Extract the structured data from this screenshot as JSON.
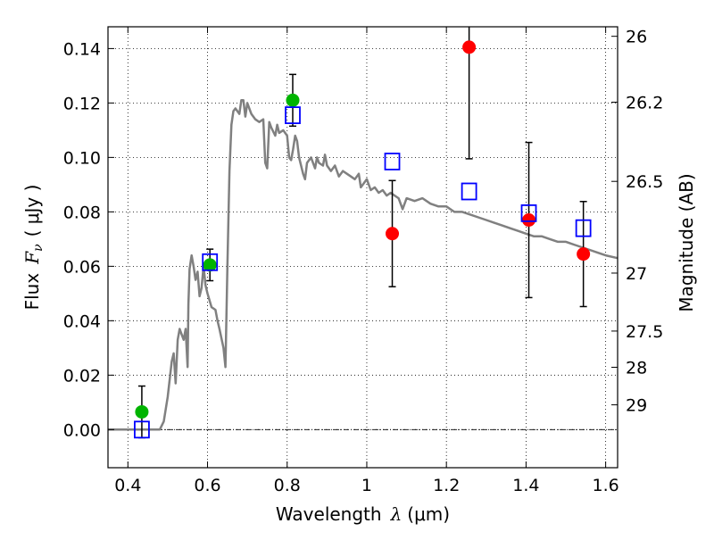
{
  "chart_data": {
    "type": "scatter",
    "xlabel": "Wavelength",
    "xlabel_symbol": "λ",
    "xlabel_unit": "(μm)",
    "ylabel": "Flux",
    "ylabel_symbol": "F",
    "ylabel_subscript": "ν",
    "ylabel_unit": "( μJy )",
    "y2label": "Magnitude (AB)",
    "xlim": [
      0.35,
      1.63
    ],
    "ylim": [
      -0.014,
      0.148
    ],
    "grid": true,
    "grid_style": "dotted",
    "x_ticks": [
      0.4,
      0.6,
      0.8,
      1.0,
      1.2,
      1.4,
      1.6
    ],
    "x_tick_labels": [
      "0.4",
      "0.6",
      "0.8",
      "1",
      "1.2",
      "1.4",
      "1.6"
    ],
    "y_ticks": [
      0.0,
      0.02,
      0.04,
      0.06,
      0.08,
      0.1,
      0.12,
      0.14
    ],
    "y_tick_labels": [
      "0.00",
      "0.02",
      "0.04",
      "0.06",
      "0.08",
      "0.10",
      "0.12",
      "0.14"
    ],
    "y2_ticks": [
      {
        "flux": 0.1445,
        "label": "26"
      },
      {
        "flux": 0.1203,
        "label": "26.2"
      },
      {
        "flux": 0.0912,
        "label": "26.5"
      },
      {
        "flux": 0.0575,
        "label": "27"
      },
      {
        "flux": 0.0362,
        "label": "27.5"
      },
      {
        "flux": 0.0229,
        "label": "28"
      },
      {
        "flux": 0.0091,
        "label": "29"
      }
    ],
    "zero_line": 0.0,
    "model_spectrum": {
      "color": "#808080",
      "points": [
        [
          0.35,
          0.0
        ],
        [
          0.48,
          0.0
        ],
        [
          0.49,
          0.003
        ],
        [
          0.5,
          0.012
        ],
        [
          0.51,
          0.025
        ],
        [
          0.515,
          0.028
        ],
        [
          0.52,
          0.017
        ],
        [
          0.525,
          0.033
        ],
        [
          0.53,
          0.037
        ],
        [
          0.535,
          0.035
        ],
        [
          0.54,
          0.033
        ],
        [
          0.545,
          0.037
        ],
        [
          0.55,
          0.023
        ],
        [
          0.552,
          0.046
        ],
        [
          0.555,
          0.059
        ],
        [
          0.56,
          0.064
        ],
        [
          0.565,
          0.06
        ],
        [
          0.57,
          0.055
        ],
        [
          0.575,
          0.058
        ],
        [
          0.58,
          0.049
        ],
        [
          0.585,
          0.052
        ],
        [
          0.59,
          0.06
        ],
        [
          0.595,
          0.053
        ],
        [
          0.6,
          0.05
        ],
        [
          0.61,
          0.045
        ],
        [
          0.62,
          0.044
        ],
        [
          0.625,
          0.04
        ],
        [
          0.63,
          0.037
        ],
        [
          0.64,
          0.03
        ],
        [
          0.645,
          0.023
        ],
        [
          0.65,
          0.06
        ],
        [
          0.655,
          0.095
        ],
        [
          0.66,
          0.112
        ],
        [
          0.665,
          0.117
        ],
        [
          0.67,
          0.118
        ],
        [
          0.68,
          0.116
        ],
        [
          0.685,
          0.121
        ],
        [
          0.69,
          0.121
        ],
        [
          0.695,
          0.115
        ],
        [
          0.7,
          0.12
        ],
        [
          0.71,
          0.116
        ],
        [
          0.72,
          0.114
        ],
        [
          0.73,
          0.113
        ],
        [
          0.74,
          0.114
        ],
        [
          0.745,
          0.098
        ],
        [
          0.75,
          0.096
        ],
        [
          0.755,
          0.113
        ],
        [
          0.76,
          0.111
        ],
        [
          0.77,
          0.108
        ],
        [
          0.775,
          0.112
        ],
        [
          0.78,
          0.109
        ],
        [
          0.79,
          0.11
        ],
        [
          0.8,
          0.108
        ],
        [
          0.805,
          0.1
        ],
        [
          0.81,
          0.099
        ],
        [
          0.815,
          0.103
        ],
        [
          0.82,
          0.108
        ],
        [
          0.825,
          0.106
        ],
        [
          0.83,
          0.1
        ],
        [
          0.84,
          0.094
        ],
        [
          0.845,
          0.092
        ],
        [
          0.85,
          0.098
        ],
        [
          0.86,
          0.1
        ],
        [
          0.87,
          0.096
        ],
        [
          0.875,
          0.1
        ],
        [
          0.88,
          0.098
        ],
        [
          0.89,
          0.097
        ],
        [
          0.895,
          0.101
        ],
        [
          0.9,
          0.097
        ],
        [
          0.91,
          0.095
        ],
        [
          0.92,
          0.097
        ],
        [
          0.93,
          0.093
        ],
        [
          0.94,
          0.095
        ],
        [
          0.95,
          0.094
        ],
        [
          0.96,
          0.093
        ],
        [
          0.97,
          0.092
        ],
        [
          0.98,
          0.094
        ],
        [
          0.985,
          0.089
        ],
        [
          0.99,
          0.09
        ],
        [
          1.0,
          0.092
        ],
        [
          1.01,
          0.088
        ],
        [
          1.02,
          0.089
        ],
        [
          1.03,
          0.087
        ],
        [
          1.04,
          0.088
        ],
        [
          1.05,
          0.086
        ],
        [
          1.06,
          0.087
        ],
        [
          1.07,
          0.086
        ],
        [
          1.08,
          0.085
        ],
        [
          1.09,
          0.081
        ],
        [
          1.1,
          0.085
        ],
        [
          1.12,
          0.084
        ],
        [
          1.14,
          0.085
        ],
        [
          1.16,
          0.083
        ],
        [
          1.18,
          0.082
        ],
        [
          1.2,
          0.082
        ],
        [
          1.22,
          0.08
        ],
        [
          1.24,
          0.08
        ],
        [
          1.26,
          0.079
        ],
        [
          1.28,
          0.078
        ],
        [
          1.3,
          0.077
        ],
        [
          1.32,
          0.076
        ],
        [
          1.34,
          0.075
        ],
        [
          1.36,
          0.074
        ],
        [
          1.38,
          0.073
        ],
        [
          1.4,
          0.072
        ],
        [
          1.42,
          0.071
        ],
        [
          1.44,
          0.071
        ],
        [
          1.46,
          0.07
        ],
        [
          1.48,
          0.069
        ],
        [
          1.5,
          0.069
        ],
        [
          1.52,
          0.068
        ],
        [
          1.54,
          0.067
        ],
        [
          1.56,
          0.066
        ],
        [
          1.58,
          0.065
        ],
        [
          1.6,
          0.064
        ],
        [
          1.63,
          0.063
        ]
      ]
    },
    "series": [
      {
        "marker": "circle",
        "color": "#00b400",
        "points": [
          {
            "x": 0.435,
            "y": 0.0065,
            "err": 0.0095
          },
          {
            "x": 0.606,
            "y": 0.0605,
            "err": 0.0058
          },
          {
            "x": 0.814,
            "y": 0.121,
            "err": 0.0095
          }
        ]
      },
      {
        "marker": "circle",
        "color": "#ff0000",
        "points": [
          {
            "x": 1.064,
            "y": 0.072,
            "err": 0.0195
          },
          {
            "x": 1.257,
            "y": 0.1405,
            "err": 0.041
          },
          {
            "x": 1.407,
            "y": 0.077,
            "err": 0.0285
          },
          {
            "x": 1.544,
            "y": 0.0645,
            "err": 0.0193
          }
        ]
      },
      {
        "marker": "open-square",
        "color": "#0000ff",
        "points": [
          {
            "x": 0.435,
            "y": 0.0
          },
          {
            "x": 0.606,
            "y": 0.0615
          },
          {
            "x": 0.814,
            "y": 0.1155
          },
          {
            "x": 1.064,
            "y": 0.0985
          },
          {
            "x": 1.257,
            "y": 0.0875
          },
          {
            "x": 1.407,
            "y": 0.0795
          },
          {
            "x": 1.544,
            "y": 0.074
          }
        ]
      }
    ]
  }
}
